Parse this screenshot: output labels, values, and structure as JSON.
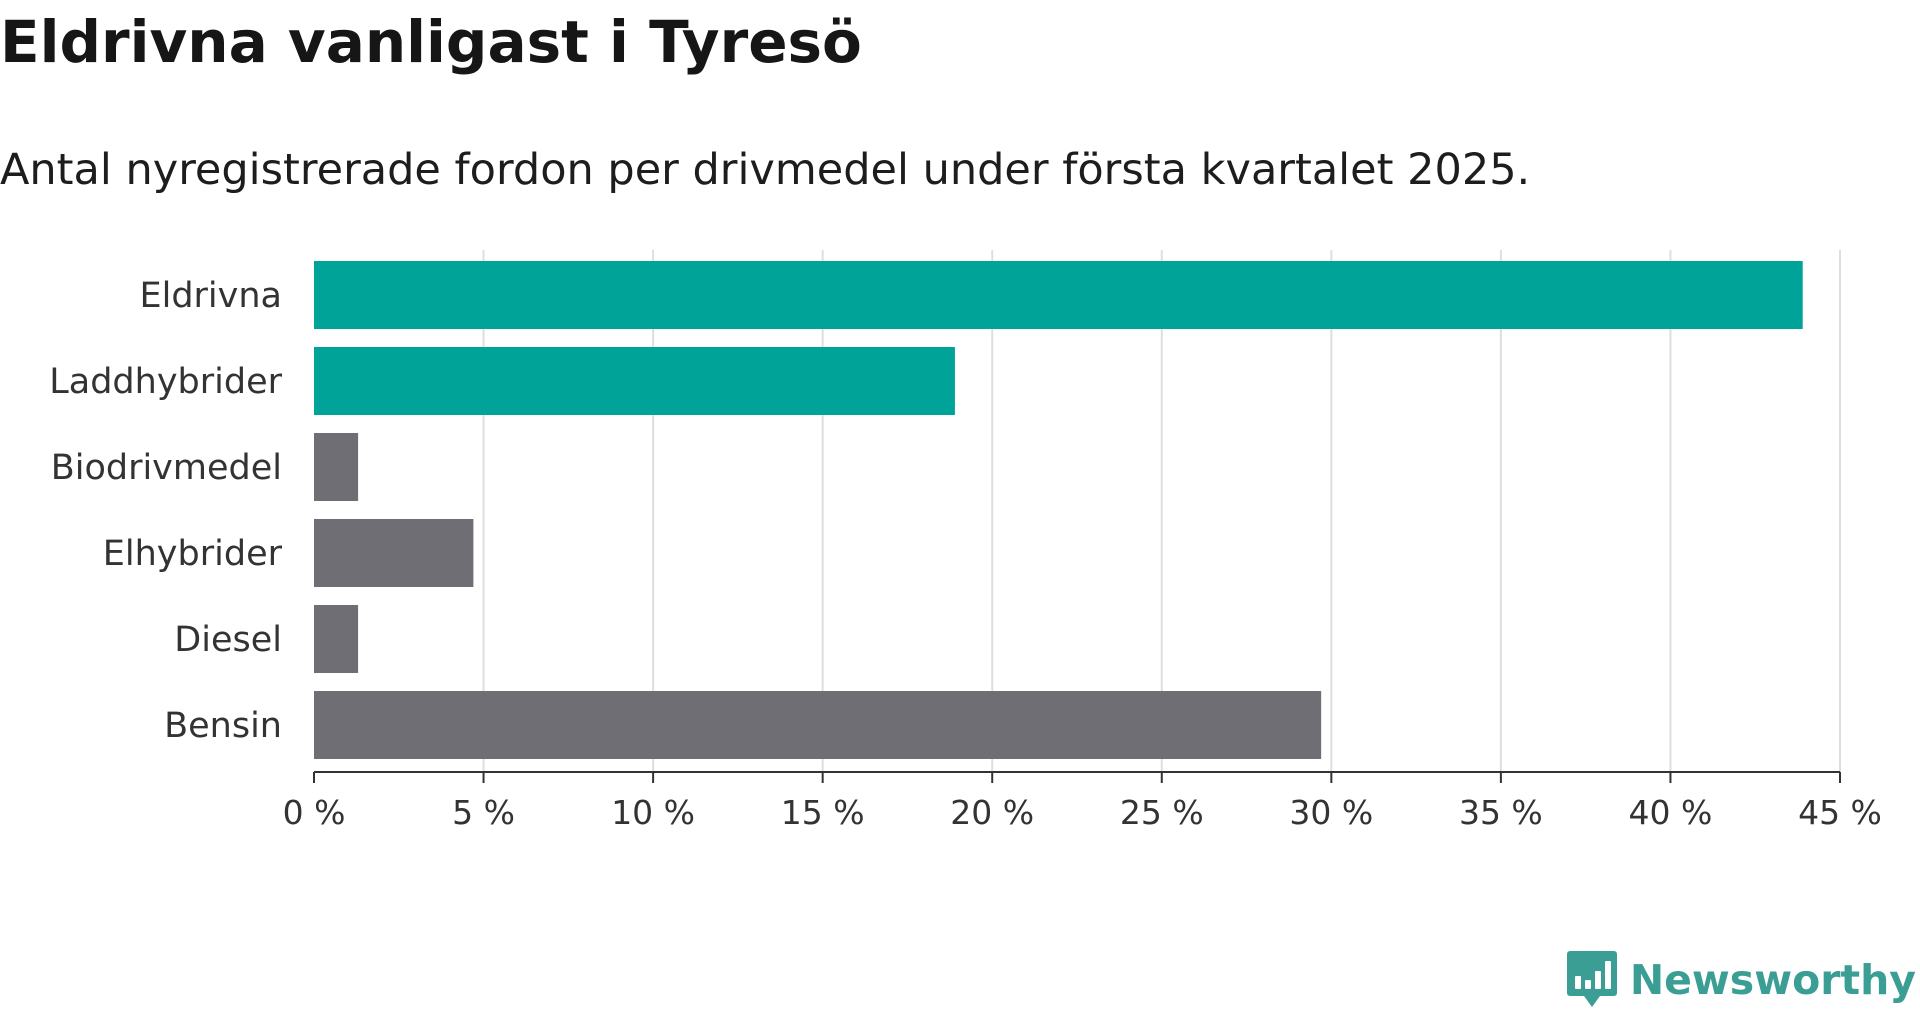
{
  "title": "Eldrivna vanligast i Tyresö",
  "subtitle": "Antal nyregistrerade fordon per drivmedel under första kvartalet 2025.",
  "brand": {
    "name": "Newsworthy",
    "color": "#3a9e95"
  },
  "chart_data": {
    "type": "bar",
    "orientation": "horizontal",
    "categories": [
      "Eldrivna",
      "Laddhybrider",
      "Biodrivmedel",
      "Elhybrider",
      "Diesel",
      "Bensin"
    ],
    "values": [
      43.9,
      18.9,
      1.3,
      4.7,
      1.3,
      29.7
    ],
    "colors": [
      "#00a398",
      "#00a398",
      "#6e6e74",
      "#6e6e74",
      "#6e6e74",
      "#6e6e74"
    ],
    "xlim": [
      0,
      45
    ],
    "x_ticks": [
      0,
      5,
      10,
      15,
      20,
      25,
      30,
      35,
      40,
      45
    ],
    "x_tick_labels": [
      "0 %",
      "5 %",
      "10 %",
      "15 %",
      "20 %",
      "25 %",
      "30 %",
      "35 %",
      "40 %",
      "45 %"
    ],
    "grid": "vertical",
    "title": "Eldrivna vanligast i Tyresö",
    "xlabel": "",
    "ylabel": ""
  }
}
